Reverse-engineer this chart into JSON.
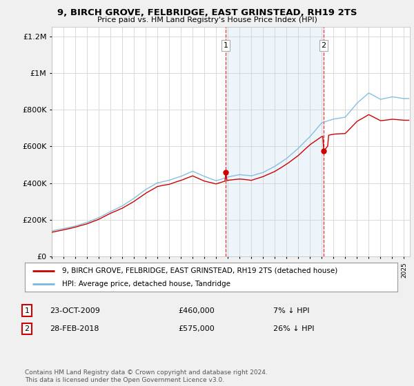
{
  "title": "9, BIRCH GROVE, FELBRIDGE, EAST GRINSTEAD, RH19 2TS",
  "subtitle": "Price paid vs. HM Land Registry's House Price Index (HPI)",
  "legend_line1": "9, BIRCH GROVE, FELBRIDGE, EAST GRINSTEAD, RH19 2TS (detached house)",
  "legend_line2": "HPI: Average price, detached house, Tandridge",
  "transaction1_date": "23-OCT-2009",
  "transaction1_price": "£460,000",
  "transaction1_hpi": "7% ↓ HPI",
  "transaction2_date": "28-FEB-2018",
  "transaction2_price": "£575,000",
  "transaction2_hpi": "26% ↓ HPI",
  "footer": "Contains HM Land Registry data © Crown copyright and database right 2024.\nThis data is licensed under the Open Government Licence v3.0.",
  "hpi_color": "#7ab8d9",
  "price_color": "#cc0000",
  "vline_color": "#ee3333",
  "shade_color": "#cce4f5",
  "background_color": "#f0f0f0",
  "plot_bg_color": "#ffffff",
  "ylim": [
    0,
    1250000
  ],
  "xlim_start": 1995.0,
  "xlim_end": 2025.5,
  "transaction1_x": 2009.81,
  "transaction1_y": 460000,
  "transaction2_x": 2018.16,
  "transaction2_y": 575000,
  "vline1_x": 2009.81,
  "vline2_x": 2018.16
}
